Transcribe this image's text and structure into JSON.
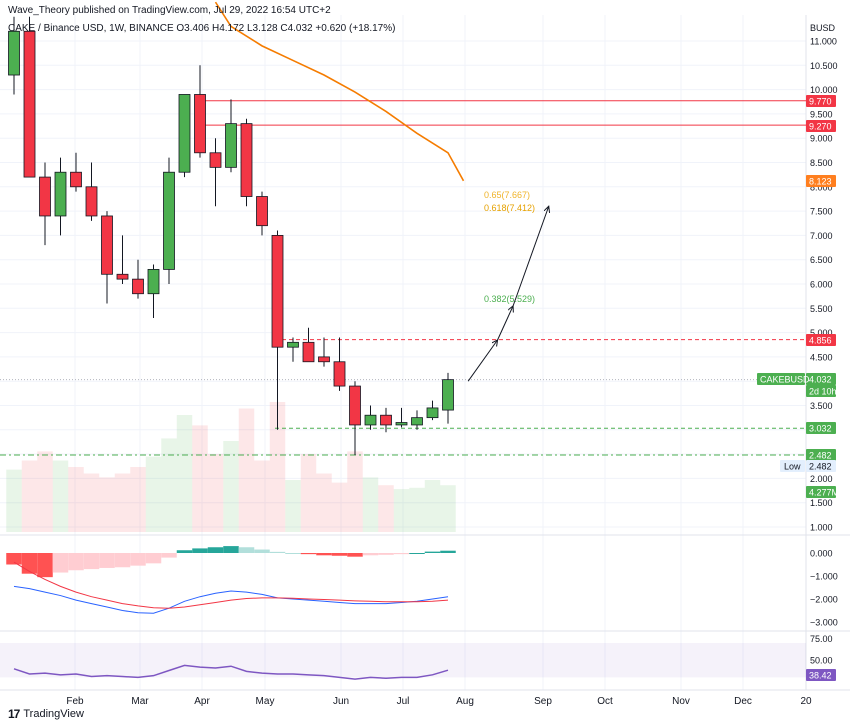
{
  "header": {
    "publisher_line": "Wave_Theory published on TradingView.com, Jul 29, 2022 16:54 UTC+2",
    "symbol_line": "CAKE / Binance USD, 1W, BINANCE  O3.406  H4.172  L3.128  C4.032  +0.620 (+18.17%)"
  },
  "footer": {
    "brand": "TradingView",
    "logo_glyph": "17"
  },
  "axis": {
    "currency": "BUSD",
    "price_ticks": [
      "11.000",
      "10.500",
      "10.000",
      "9.500",
      "9.000",
      "8.500",
      "8.000",
      "7.500",
      "7.000",
      "6.500",
      "6.000",
      "5.500",
      "5.000",
      "4.500",
      "4.000",
      "3.500",
      "3.000",
      "2.500",
      "2.000",
      "1.500",
      "1.000"
    ],
    "macd_ticks": [
      "0.000",
      "−1.000",
      "−2.000",
      "−3.000"
    ],
    "rsi_ticks": [
      "75.00",
      "50.00"
    ],
    "months": [
      "Feb",
      "Mar",
      "Apr",
      "May",
      "Jun",
      "Jul",
      "Aug",
      "Sep",
      "Oct",
      "Nov",
      "Dec",
      "20"
    ]
  },
  "price_labels": [
    {
      "text": "9.770",
      "color": "#f23645"
    },
    {
      "text": "9.270",
      "color": "#f23645"
    },
    {
      "text": "8.123",
      "color": "#ff7f1f"
    },
    {
      "text": "4.856",
      "color": "#f23645"
    },
    {
      "text": "4.032",
      "color": "#4caf50"
    },
    {
      "text": "2d 10h",
      "color": "#4caf50"
    },
    {
      "text": "3.032",
      "color": "#4caf50"
    },
    {
      "text": "2.482",
      "color": "#4caf50"
    },
    {
      "text": "2.482",
      "color": "#e3effd"
    },
    {
      "text": "4.277M",
      "color": "#4caf50"
    },
    {
      "text": "38.42",
      "color": "#7e57c2"
    }
  ],
  "tags": {
    "ticker": "CAKEBUSD",
    "low": "Low"
  },
  "fib_labels": [
    {
      "text": "0.65(7.667)",
      "color": "#f0b429"
    },
    {
      "text": "0.618(7.412)",
      "color": "#e6a100"
    },
    {
      "text": "0.382(5.529)",
      "color": "#4caf50"
    }
  ],
  "chart_data": {
    "type": "candlestick",
    "title": "CAKE / Binance USD, 1W, BINANCE",
    "ylabel": "BUSD",
    "ylim": [
      0.8,
      11.6
    ],
    "up_color": "#4caf50",
    "down_color": "#f23645",
    "candles": [
      {
        "o": 10.3,
        "h": 11.5,
        "l": 9.9,
        "c": 11.2
      },
      {
        "o": 11.2,
        "h": 11.5,
        "l": 8.3,
        "c": 8.2
      },
      {
        "o": 8.2,
        "h": 8.5,
        "l": 6.8,
        "c": 7.4
      },
      {
        "o": 7.4,
        "h": 8.6,
        "l": 7.0,
        "c": 8.3
      },
      {
        "o": 8.3,
        "h": 8.7,
        "l": 7.9,
        "c": 8.0
      },
      {
        "o": 8.0,
        "h": 8.5,
        "l": 7.3,
        "c": 7.4
      },
      {
        "o": 7.4,
        "h": 7.5,
        "l": 5.6,
        "c": 6.2
      },
      {
        "o": 6.2,
        "h": 7.0,
        "l": 6.0,
        "c": 6.1
      },
      {
        "o": 6.1,
        "h": 6.5,
        "l": 5.7,
        "c": 5.8
      },
      {
        "o": 5.8,
        "h": 6.4,
        "l": 5.3,
        "c": 6.3
      },
      {
        "o": 6.3,
        "h": 8.6,
        "l": 6.0,
        "c": 8.3
      },
      {
        "o": 8.3,
        "h": 9.9,
        "l": 8.2,
        "c": 9.9
      },
      {
        "o": 9.9,
        "h": 10.5,
        "l": 8.6,
        "c": 8.7
      },
      {
        "o": 8.7,
        "h": 9.0,
        "l": 7.6,
        "c": 8.4
      },
      {
        "o": 8.4,
        "h": 9.8,
        "l": 8.3,
        "c": 9.3
      },
      {
        "o": 9.3,
        "h": 9.4,
        "l": 7.6,
        "c": 7.8
      },
      {
        "o": 7.8,
        "h": 7.9,
        "l": 7.0,
        "c": 7.2
      },
      {
        "o": 7.0,
        "h": 7.1,
        "l": 3.0,
        "c": 4.7
      },
      {
        "o": 4.7,
        "h": 4.9,
        "l": 4.4,
        "c": 4.8
      },
      {
        "o": 4.8,
        "h": 5.1,
        "l": 4.4,
        "c": 4.4
      },
      {
        "o": 4.5,
        "h": 4.9,
        "l": 4.3,
        "c": 4.4
      },
      {
        "o": 4.4,
        "h": 4.9,
        "l": 3.8,
        "c": 3.9
      },
      {
        "o": 3.9,
        "h": 4.0,
        "l": 2.48,
        "c": 3.1
      },
      {
        "o": 3.1,
        "h": 3.5,
        "l": 3.0,
        "c": 3.3
      },
      {
        "o": 3.3,
        "h": 3.45,
        "l": 2.95,
        "c": 3.1
      },
      {
        "o": 3.1,
        "h": 3.45,
        "l": 3.05,
        "c": 3.15
      },
      {
        "o": 3.1,
        "h": 3.4,
        "l": 3.0,
        "c": 3.25
      },
      {
        "o": 3.25,
        "h": 3.6,
        "l": 3.2,
        "c": 3.45
      },
      {
        "o": 3.406,
        "h": 4.172,
        "l": 3.128,
        "c": 4.032
      }
    ],
    "moving_average": {
      "color": "#f57c00",
      "points": [
        [
          13,
          11.8
        ],
        [
          14,
          11.3
        ],
        [
          16,
          10.9
        ],
        [
          18,
          10.6
        ],
        [
          20,
          10.3
        ],
        [
          22,
          9.95
        ],
        [
          24,
          9.55
        ],
        [
          26,
          9.1
        ],
        [
          28,
          8.7
        ],
        [
          29,
          8.123
        ]
      ]
    },
    "horizontal_lines": [
      {
        "value": 9.77,
        "style": "solid",
        "color": "#f23645"
      },
      {
        "value": 9.27,
        "style": "solid",
        "color": "#f23645"
      },
      {
        "value": 4.856,
        "style": "dashed",
        "color": "#f23645"
      },
      {
        "value": 3.032,
        "style": "dashed",
        "color": "#4caf50"
      },
      {
        "value": 2.482,
        "style": "dash-dot",
        "color": "#4caf50"
      },
      {
        "value": 4.032,
        "style": "dotted",
        "color": "#b2b5be"
      }
    ],
    "projection_arrows": [
      {
        "from": [
          29.3,
          4.0
        ],
        "to": [
          31.2,
          4.85
        ]
      },
      {
        "from": [
          31.2,
          4.85
        ],
        "to": [
          32.2,
          5.55
        ]
      },
      {
        "from": [
          32.2,
          5.55
        ],
        "to": [
          34.5,
          7.6
        ]
      }
    ],
    "volume": {
      "last": "4.277M",
      "values": [
        0.48,
        0.55,
        0.62,
        0.55,
        0.5,
        0.45,
        0.42,
        0.45,
        0.5,
        0.58,
        0.72,
        0.9,
        0.82,
        0.6,
        0.7,
        0.95,
        0.55,
        1.0,
        0.4,
        0.6,
        0.45,
        0.38,
        0.62,
        0.42,
        0.36,
        0.33,
        0.34,
        0.4,
        0.36
      ]
    },
    "macd": {
      "histogram": [
        -0.5,
        -0.9,
        -1.05,
        -0.85,
        -0.75,
        -0.7,
        -0.65,
        -0.62,
        -0.55,
        -0.45,
        -0.2,
        0.12,
        0.2,
        0.25,
        0.3,
        0.25,
        0.15,
        0.05,
        0.0,
        -0.05,
        -0.1,
        -0.12,
        -0.16,
        -0.1,
        -0.08,
        -0.05,
        0.0,
        0.06,
        0.1
      ],
      "macd_line": [
        -1.45,
        -1.55,
        -1.7,
        -1.85,
        -2.05,
        -2.2,
        -2.35,
        -2.5,
        -2.6,
        -2.62,
        -2.4,
        -2.1,
        -1.9,
        -1.75,
        -1.65,
        -1.7,
        -1.8,
        -1.95,
        -2.0,
        -2.05,
        -2.1,
        -2.15,
        -2.2,
        -2.2,
        -2.2,
        -2.15,
        -2.1,
        -2.0,
        -1.9
      ],
      "signal_line": [
        -0.4,
        -0.8,
        -1.15,
        -1.45,
        -1.7,
        -1.9,
        -2.05,
        -2.2,
        -2.3,
        -2.38,
        -2.4,
        -2.35,
        -2.25,
        -2.15,
        -2.05,
        -1.98,
        -1.95,
        -1.95,
        -1.97,
        -2.0,
        -2.02,
        -2.05,
        -2.08,
        -2.1,
        -2.12,
        -2.12,
        -2.12,
        -2.1,
        -2.05
      ],
      "ylim": [
        -3.2,
        0.25
      ]
    },
    "rsi": {
      "values": [
        40,
        34,
        35,
        33,
        34,
        31,
        32,
        31,
        30,
        32,
        38,
        44,
        42,
        41,
        43,
        37,
        35,
        34,
        34,
        33,
        32,
        30,
        28,
        30,
        29,
        30,
        30,
        33,
        38.42
      ],
      "ylim": [
        20,
        85
      ],
      "band": [
        30,
        70
      ]
    }
  }
}
